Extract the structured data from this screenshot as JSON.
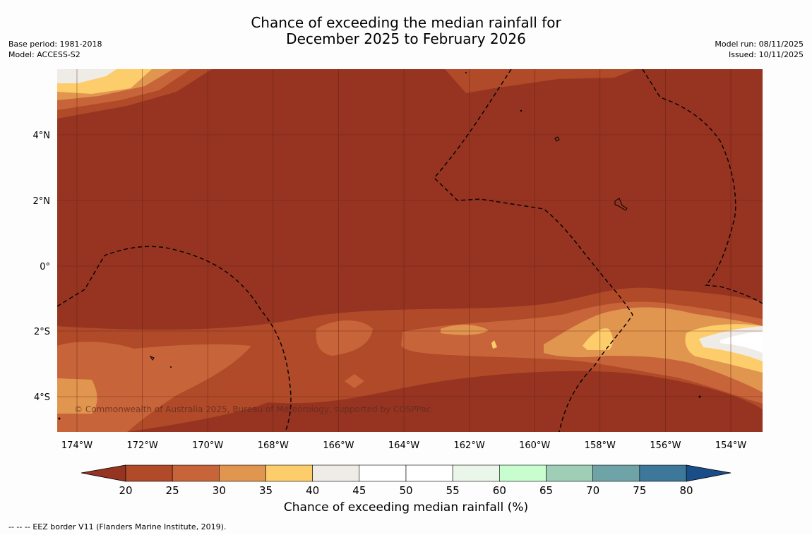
{
  "title": {
    "line1": "Chance of exceeding the median rainfall for",
    "line2": "December 2025 to February 2026"
  },
  "meta": {
    "base_period": "Base period: 1981-2018",
    "model": "Model: ACCESS-S2",
    "model_run": "Model run: 08/11/2025",
    "issued": "Issued: 10/11/2025"
  },
  "map": {
    "lat_ticks": [
      "4°N",
      "2°N",
      "0°",
      "2°S",
      "4°S"
    ],
    "lon_ticks": [
      "174°W",
      "172°W",
      "170°W",
      "168°W",
      "166°W",
      "164°W",
      "162°W",
      "160°W",
      "158°W",
      "156°W",
      "154°W"
    ],
    "copyright": "© Commonwealth of Australia 2025, Bureau of Meteorology, supported by COSPPac",
    "background_color": "#963421"
  },
  "colorbar": {
    "title": "Chance of exceeding median rainfall (%)",
    "tick_labels": [
      "20",
      "25",
      "30",
      "35",
      "40",
      "45",
      "50",
      "55",
      "60",
      "65",
      "70",
      "75",
      "80"
    ],
    "colors": [
      "#b04a28",
      "#c8643a",
      "#e0964e",
      "#fdcd6c",
      "#efebe7",
      "#ffffff",
      "#ffffff",
      "#ebf6ea",
      "#c8fdcd",
      "#9ecfb6",
      "#6ea4a7",
      "#3d789a"
    ],
    "under_color": "#963421",
    "over_color": "#1a4e88"
  },
  "legend": {
    "eez_symbol": "-- -- --",
    "eez_text": "EEZ border V11 (Flanders Marine Institute, 2019)."
  }
}
